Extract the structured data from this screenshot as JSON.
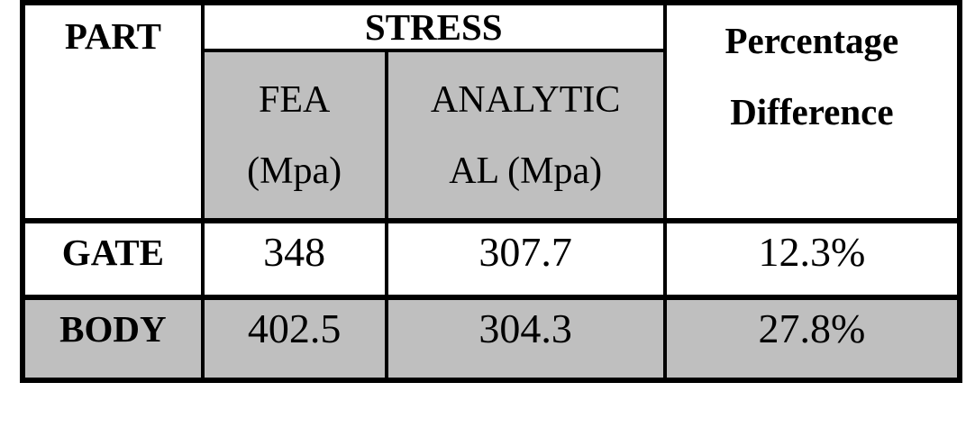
{
  "table": {
    "header": {
      "part": "PART",
      "stress": "STRESS",
      "fea": {
        "line1": "FEA",
        "line2": "(Mpa)"
      },
      "analytical": {
        "line1": "ANALYTIC",
        "line2": "AL (Mpa)"
      },
      "percentage": {
        "line1": "Percentage",
        "line2": "Difference"
      }
    },
    "rows": [
      {
        "part": "GATE",
        "fea": "348",
        "analytical": "307.7",
        "percentage": "12.3%"
      },
      {
        "part": "BODY",
        "fea": "402.5",
        "analytical": "304.3",
        "percentage": "27.8%"
      }
    ],
    "colors": {
      "shaded_cell": "#bfbfbf",
      "border": "#000000",
      "text": "#000000",
      "background": "#ffffff"
    }
  },
  "chart_data": {
    "type": "table",
    "columns": [
      "PART",
      "STRESS FEA (Mpa)",
      "STRESS ANALYTICAL (Mpa)",
      "Percentage Difference"
    ],
    "rows": [
      [
        "GATE",
        348,
        307.7,
        "12.3%"
      ],
      [
        "BODY",
        402.5,
        304.3,
        "27.8%"
      ]
    ]
  }
}
